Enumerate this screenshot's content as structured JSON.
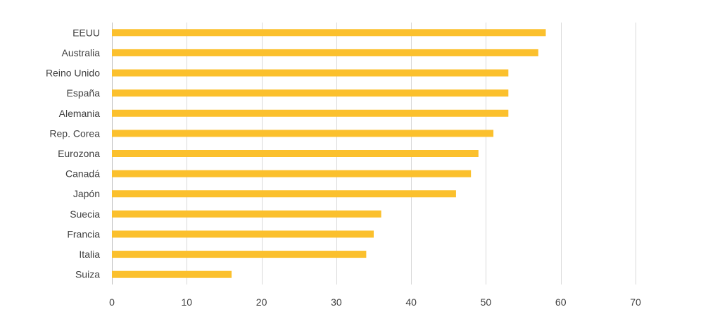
{
  "chart_data": {
    "type": "bar",
    "orientation": "horizontal",
    "categories": [
      "EEUU",
      "Australia",
      "Reino Unido",
      "España",
      "Alemania",
      "Rep. Corea",
      "Eurozona",
      "Canadá",
      "Japón",
      "Suecia",
      "Francia",
      "Italia",
      "Suiza"
    ],
    "values": [
      58,
      57,
      53,
      53,
      53,
      51,
      49,
      48,
      46,
      36,
      35,
      34,
      16
    ],
    "xlim": [
      0,
      70
    ],
    "xticks": [
      0,
      10,
      20,
      30,
      40,
      50,
      60,
      70
    ],
    "grid": "vertical",
    "bar_color": "#FBC02D",
    "title": "",
    "xlabel": "",
    "ylabel": ""
  }
}
